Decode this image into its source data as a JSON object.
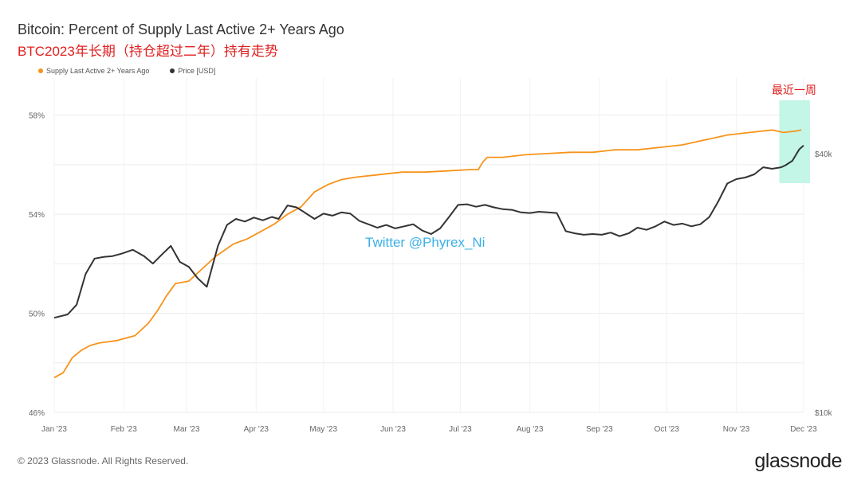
{
  "header": {
    "title": "Bitcoin: Percent of Supply Last Active 2+ Years Ago",
    "subtitle": "BTC2023年长期（持仓超过二年）持有走势"
  },
  "footer": {
    "copyright": "© 2023 Glassnode. All Rights Reserved.",
    "logo": "glassnode"
  },
  "chart_data": {
    "type": "line",
    "title": "Bitcoin: Percent of Supply Last Active 2+ Years Ago",
    "subtitle": "BTC2023年长期（持仓超过二年）持有走势",
    "x_ticks": [
      "Jan '23",
      "Feb '23",
      "Mar '23",
      "Apr '23",
      "May '23",
      "Jun '23",
      "Jul '23",
      "Aug '23",
      "Sep '23",
      "Oct '23",
      "Nov '23",
      "Dec '23"
    ],
    "y_left_ticks": [
      "46%",
      "50%",
      "54%",
      "58%"
    ],
    "y_left_range": [
      46,
      59.5
    ],
    "y_right_ticks": [
      "$10k",
      "$40k"
    ],
    "y_right_scale": "log",
    "y_right_range": [
      10000,
      60000
    ],
    "legend_position": "top-left",
    "grid": true,
    "series": [
      {
        "name": "Supply Last Active 2+ Years Ago",
        "color": "#f7931a",
        "axis": "left",
        "points": [
          [
            0,
            47.4
          ],
          [
            4,
            47.6
          ],
          [
            8,
            48.2
          ],
          [
            12,
            48.5
          ],
          [
            16,
            48.7
          ],
          [
            20,
            48.8
          ],
          [
            28,
            48.9
          ],
          [
            36,
            49.1
          ],
          [
            42,
            49.6
          ],
          [
            46,
            50.1
          ],
          [
            50,
            50.7
          ],
          [
            54,
            51.2
          ],
          [
            60,
            51.3
          ],
          [
            66,
            51.8
          ],
          [
            72,
            52.3
          ],
          [
            80,
            52.8
          ],
          [
            86,
            53.0
          ],
          [
            92,
            53.3
          ],
          [
            98,
            53.6
          ],
          [
            104,
            54.0
          ],
          [
            110,
            54.3
          ],
          [
            116,
            54.9
          ],
          [
            122,
            55.2
          ],
          [
            128,
            55.4
          ],
          [
            135,
            55.5
          ],
          [
            145,
            55.6
          ],
          [
            155,
            55.7
          ],
          [
            165,
            55.7
          ],
          [
            175,
            55.75
          ],
          [
            185,
            55.8
          ],
          [
            189,
            55.8
          ],
          [
            191,
            56.1
          ],
          [
            193,
            56.3
          ],
          [
            200,
            56.3
          ],
          [
            210,
            56.4
          ],
          [
            220,
            56.45
          ],
          [
            230,
            56.5
          ],
          [
            240,
            56.5
          ],
          [
            250,
            56.6
          ],
          [
            260,
            56.6
          ],
          [
            270,
            56.7
          ],
          [
            280,
            56.8
          ],
          [
            290,
            57.0
          ],
          [
            300,
            57.2
          ],
          [
            310,
            57.3
          ],
          [
            320,
            57.4
          ],
          [
            325,
            57.3
          ],
          [
            330,
            57.35
          ],
          [
            333,
            57.4
          ]
        ]
      },
      {
        "name": "Price [USD]",
        "color": "#333333",
        "axis": "right",
        "points": [
          [
            0,
            16600
          ],
          [
            6,
            16900
          ],
          [
            10,
            17800
          ],
          [
            14,
            21000
          ],
          [
            18,
            22800
          ],
          [
            22,
            23000
          ],
          [
            26,
            23100
          ],
          [
            30,
            23400
          ],
          [
            35,
            23900
          ],
          [
            40,
            23100
          ],
          [
            44,
            22200
          ],
          [
            48,
            23300
          ],
          [
            52,
            24400
          ],
          [
            56,
            22400
          ],
          [
            60,
            21800
          ],
          [
            64,
            20500
          ],
          [
            68,
            19600
          ],
          [
            70,
            21400
          ],
          [
            73,
            24400
          ],
          [
            77,
            27300
          ],
          [
            81,
            28200
          ],
          [
            85,
            27800
          ],
          [
            89,
            28400
          ],
          [
            93,
            28000
          ],
          [
            97,
            28500
          ],
          [
            100,
            28200
          ],
          [
            104,
            30300
          ],
          [
            108,
            30000
          ],
          [
            112,
            29100
          ],
          [
            116,
            28200
          ],
          [
            120,
            29000
          ],
          [
            124,
            28700
          ],
          [
            128,
            29200
          ],
          [
            132,
            29000
          ],
          [
            136,
            27900
          ],
          [
            140,
            27400
          ],
          [
            144,
            26900
          ],
          [
            148,
            27300
          ],
          [
            152,
            26800
          ],
          [
            156,
            27100
          ],
          [
            160,
            27400
          ],
          [
            164,
            26500
          ],
          [
            168,
            26000
          ],
          [
            172,
            26800
          ],
          [
            176,
            28500
          ],
          [
            180,
            30400
          ],
          [
            184,
            30500
          ],
          [
            188,
            30100
          ],
          [
            192,
            30400
          ],
          [
            196,
            30000
          ],
          [
            200,
            29700
          ],
          [
            204,
            29600
          ],
          [
            208,
            29200
          ],
          [
            212,
            29100
          ],
          [
            216,
            29300
          ],
          [
            220,
            29200
          ],
          [
            224,
            29100
          ],
          [
            228,
            26400
          ],
          [
            232,
            26100
          ],
          [
            236,
            25900
          ],
          [
            240,
            26000
          ],
          [
            244,
            25900
          ],
          [
            248,
            26200
          ],
          [
            252,
            25700
          ],
          [
            256,
            26100
          ],
          [
            260,
            26900
          ],
          [
            264,
            26600
          ],
          [
            268,
            27100
          ],
          [
            272,
            27800
          ],
          [
            276,
            27300
          ],
          [
            280,
            27500
          ],
          [
            284,
            27100
          ],
          [
            288,
            27400
          ],
          [
            292,
            28500
          ],
          [
            296,
            31000
          ],
          [
            300,
            34100
          ],
          [
            304,
            34900
          ],
          [
            308,
            35200
          ],
          [
            312,
            35800
          ],
          [
            316,
            37200
          ],
          [
            320,
            36900
          ],
          [
            324,
            37200
          ],
          [
            326,
            37600
          ],
          [
            329,
            38500
          ],
          [
            332,
            40900
          ],
          [
            334,
            41800
          ]
        ]
      }
    ],
    "annotations": {
      "watermark": "Twitter @Phyrex_Ni",
      "highlight_label": "最近一周",
      "highlight_day_range": [
        326,
        334
      ],
      "highlight_color": "#b9f5e3"
    }
  }
}
